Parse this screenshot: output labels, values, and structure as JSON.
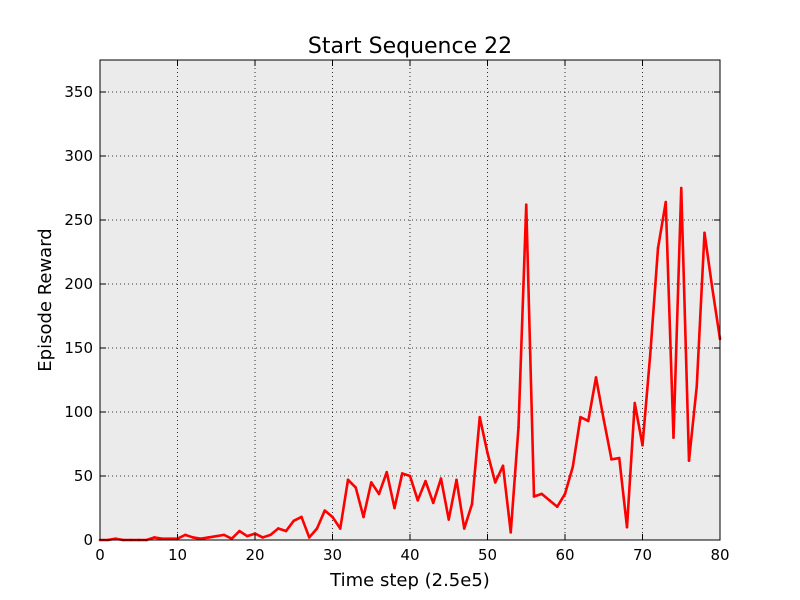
{
  "chart_data": {
    "type": "line",
    "title": "Start Sequence 22",
    "xlabel": "Time step (2.5e5)",
    "ylabel": "Episode Reward",
    "xlim": [
      0,
      80
    ],
    "ylim": [
      0,
      375
    ],
    "xticks": [
      0,
      10,
      20,
      30,
      40,
      50,
      60,
      70,
      80
    ],
    "yticks": [
      0,
      50,
      100,
      150,
      200,
      250,
      300,
      350
    ],
    "grid": true,
    "legend": "none",
    "plot_background": "#ebebeb",
    "series": [
      {
        "color": "#ff0000",
        "x": [
          0,
          1,
          2,
          3,
          4,
          5,
          6,
          7,
          8,
          9,
          10,
          11,
          12,
          13,
          14,
          15,
          16,
          17,
          18,
          19,
          20,
          21,
          22,
          23,
          24,
          25,
          26,
          27,
          28,
          29,
          30,
          31,
          32,
          33,
          34,
          35,
          36,
          37,
          38,
          39,
          40,
          41,
          42,
          43,
          44,
          45,
          46,
          47,
          48,
          49,
          50,
          51,
          52,
          53,
          54,
          55,
          56,
          57,
          58,
          59,
          60,
          61,
          62,
          63,
          64,
          65,
          66,
          67,
          68,
          69,
          70,
          71,
          72,
          73,
          74,
          75,
          76,
          77,
          78,
          79,
          80
        ],
        "y": [
          0,
          0,
          1,
          0,
          0,
          0,
          0,
          2,
          1,
          1,
          1,
          4,
          2,
          1,
          2,
          3,
          4,
          1,
          7,
          3,
          5,
          2,
          4,
          9,
          7,
          15,
          18,
          2,
          9,
          23,
          18,
          9,
          47,
          41,
          18,
          45,
          36,
          53,
          25,
          52,
          50,
          31,
          46,
          29,
          48,
          16,
          47,
          9,
          28,
          96,
          68,
          45,
          58,
          6,
          88,
          262,
          34,
          36,
          31,
          26,
          36,
          57,
          96,
          93,
          127,
          94,
          63,
          64,
          10,
          107,
          74,
          145,
          228,
          264,
          80,
          275,
          62,
          120,
          240,
          197,
          157
        ]
      }
    ]
  }
}
